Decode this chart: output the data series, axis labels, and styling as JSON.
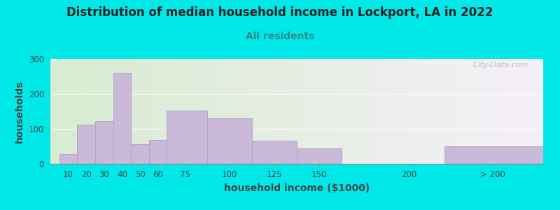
{
  "title": "Distribution of median household income in Lockport, LA in 2022",
  "subtitle": "All residents",
  "xlabel": "household income ($1000)",
  "ylabel": "households",
  "bar_color": "#c9b8d8",
  "bar_edge_color": "#b0a0c8",
  "background_outer": "#00e8e8",
  "background_inner_left": "#d8ecd0",
  "background_inner_right": "#f5f0f8",
  "values": [
    28,
    112,
    122,
    260,
    57,
    68,
    152,
    130,
    67,
    45,
    0,
    50
  ],
  "ylim": [
    0,
    300
  ],
  "yticks": [
    0,
    100,
    200,
    300
  ],
  "bar_lefts": [
    5,
    15,
    25,
    35,
    45,
    55,
    65,
    87.5,
    112.5,
    137.5,
    175,
    220
  ],
  "bar_widths": [
    10,
    10,
    10,
    10,
    10,
    10,
    22.5,
    25,
    25,
    25,
    0,
    55
  ],
  "xtick_positions": [
    10,
    20,
    30,
    40,
    50,
    60,
    75,
    100,
    125,
    150,
    200,
    247
  ],
  "xtick_labels": [
    "10",
    "20",
    "30",
    "40",
    "50",
    "60",
    "75",
    "100",
    "125",
    "150",
    "200",
    "> 200"
  ],
  "xlim": [
    0,
    275
  ],
  "watermark": "City-Data.com",
  "title_fontsize": 12,
  "subtitle_fontsize": 10,
  "axis_label_fontsize": 10,
  "tick_fontsize": 8.5
}
